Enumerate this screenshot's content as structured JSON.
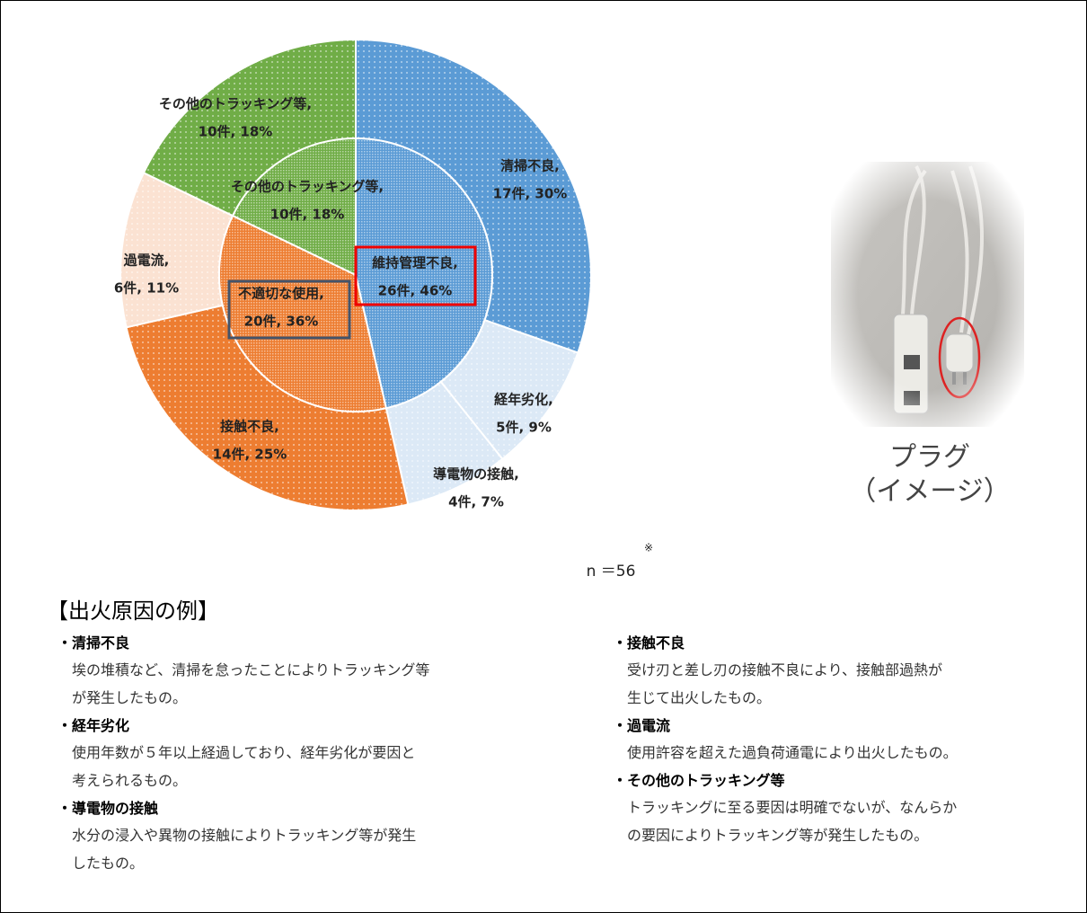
{
  "chart_data": {
    "type": "sunburst",
    "inner": {
      "categories": [
        "維持管理不良,",
        "不適切な使用,",
        "その他のトラッキング等,"
      ],
      "values": [
        26,
        20,
        10
      ],
      "value_labels": [
        "26件, 46%",
        "20件, 36%",
        "10件, 18%"
      ],
      "colors": [
        "#5b9bd5",
        "#ed7d31",
        "#70ad47"
      ]
    },
    "outer": {
      "categories": [
        "清掃不良,",
        "経年劣化,",
        "導電物の接触,",
        "接触不良,",
        "過電流,",
        "その他のトラッキング等,"
      ],
      "values": [
        17,
        5,
        4,
        14,
        6,
        10
      ],
      "value_labels": [
        "17件, 30%",
        "5件, 9%",
        "4件, 7%",
        "14件, 25%",
        "6件, 11%",
        "10件, 18%"
      ],
      "colors": [
        "#5b9bd5",
        "#dce9f6",
        "#dce9f6",
        "#ed7d31",
        "#fbe2d2",
        "#70ad47"
      ]
    },
    "note": "n ＝56",
    "note_mark": "※"
  },
  "image": {
    "caption": [
      "プラグ",
      "（イメージ）"
    ]
  },
  "examples": {
    "title": "【出火原因の例】",
    "left": [
      {
        "heading": "・清掃不良",
        "lines": [
          "埃の堆積など、清掃を怠ったことによりトラッキング等",
          "が発生したもの。"
        ]
      },
      {
        "heading": "・経年劣化",
        "lines": [
          "使用年数が５年以上経過しており、経年劣化が要因と",
          "考えられるもの。"
        ]
      },
      {
        "heading": "・導電物の接触",
        "lines": [
          "水分の浸入や異物の接触によりトラッキング等が発生",
          "したもの。"
        ]
      }
    ],
    "right": [
      {
        "heading": "・接触不良",
        "lines": [
          "受け刃と差し刃の接触不良により、接触部過熱が",
          "生じて出火したもの。"
        ]
      },
      {
        "heading": "・過電流",
        "lines": [
          "使用許容を超えた過負荷通電により出火したもの。"
        ]
      },
      {
        "heading": "・その他のトラッキング等",
        "lines": [
          "トラッキングに至る要因は明確でないが、なんらか",
          "の要因によりトラッキング等が発生したもの。"
        ]
      }
    ]
  }
}
